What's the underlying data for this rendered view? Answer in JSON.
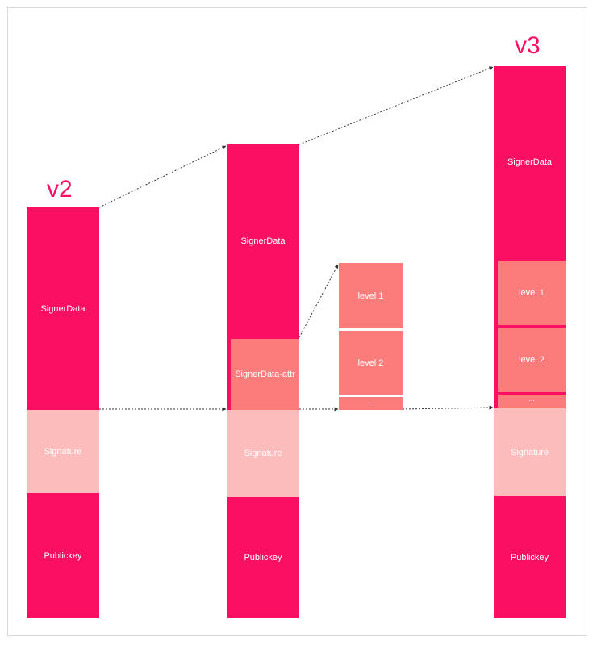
{
  "versions": {
    "v2": "v2",
    "v3": "v3"
  },
  "colors": {
    "signer": "#fb0f62",
    "attr": "#fc7c7c",
    "signature": "#fdbcbc",
    "arrow": "#333333"
  },
  "col1": {
    "signer_data": "SignerData",
    "signature": "Signature",
    "publickey": "Publickey"
  },
  "col2": {
    "signer_data": "SignerData",
    "signer_data_attr": "SignerData-attr",
    "signature": "Signature",
    "publickey": "Publickey"
  },
  "levels": {
    "level1": "level 1",
    "level2": "level 2",
    "more": "..."
  },
  "col4": {
    "signer_data": "SignerData",
    "level1": "level 1",
    "level2": "level 2",
    "more": "...",
    "signature": "Signature",
    "publickey": "Publickey"
  }
}
